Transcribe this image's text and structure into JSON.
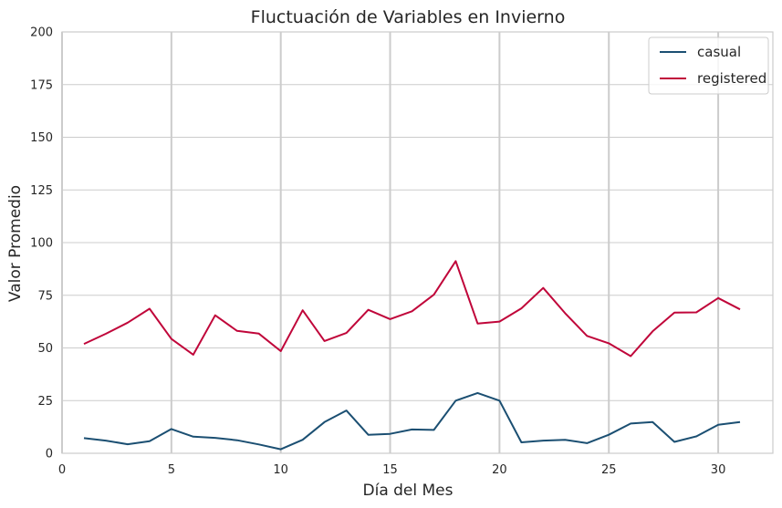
{
  "chart_data": {
    "type": "line",
    "title": "Fluctuación de Variables en Invierno",
    "xlabel": "Día del Mes",
    "ylabel": "Valor Promedio",
    "xlim": [
      0,
      32.5
    ],
    "ylim": [
      0,
      200
    ],
    "xticks": [
      0,
      5,
      10,
      15,
      20,
      25,
      30
    ],
    "yticks": [
      0,
      25,
      50,
      75,
      100,
      125,
      150,
      175,
      200
    ],
    "grid": true,
    "legend_position": "top-right",
    "x": [
      1,
      2,
      3,
      4,
      5,
      6,
      7,
      8,
      9,
      10,
      11,
      12,
      13,
      14,
      15,
      16,
      17,
      18,
      19,
      20,
      21,
      22,
      23,
      24,
      25,
      26,
      27,
      28,
      29,
      30,
      31
    ],
    "series": [
      {
        "name": "casual",
        "color": "#1b4f72",
        "values": [
          7.2,
          6.0,
          4.3,
          5.7,
          11.5,
          7.9,
          7.3,
          6.2,
          4.2,
          1.9,
          6.4,
          14.8,
          20.3,
          8.8,
          9.2,
          11.3,
          11.1,
          25.0,
          28.6,
          25.0,
          5.2,
          6.0,
          6.4,
          4.8,
          8.8,
          14.1,
          14.8,
          5.4,
          8.0,
          13.5,
          14.8
        ]
      },
      {
        "name": "registered",
        "color": "#c0063a",
        "values": [
          51.9,
          56.7,
          62.0,
          68.6,
          54.3,
          46.8,
          65.5,
          58.1,
          56.8,
          48.5,
          67.9,
          53.3,
          57.1,
          68.1,
          63.7,
          67.4,
          75.3,
          91.2,
          61.6,
          62.5,
          68.8,
          78.5,
          66.5,
          55.7,
          52.2,
          46.1,
          57.9,
          66.8,
          66.9,
          73.7,
          68.3
        ]
      }
    ]
  }
}
